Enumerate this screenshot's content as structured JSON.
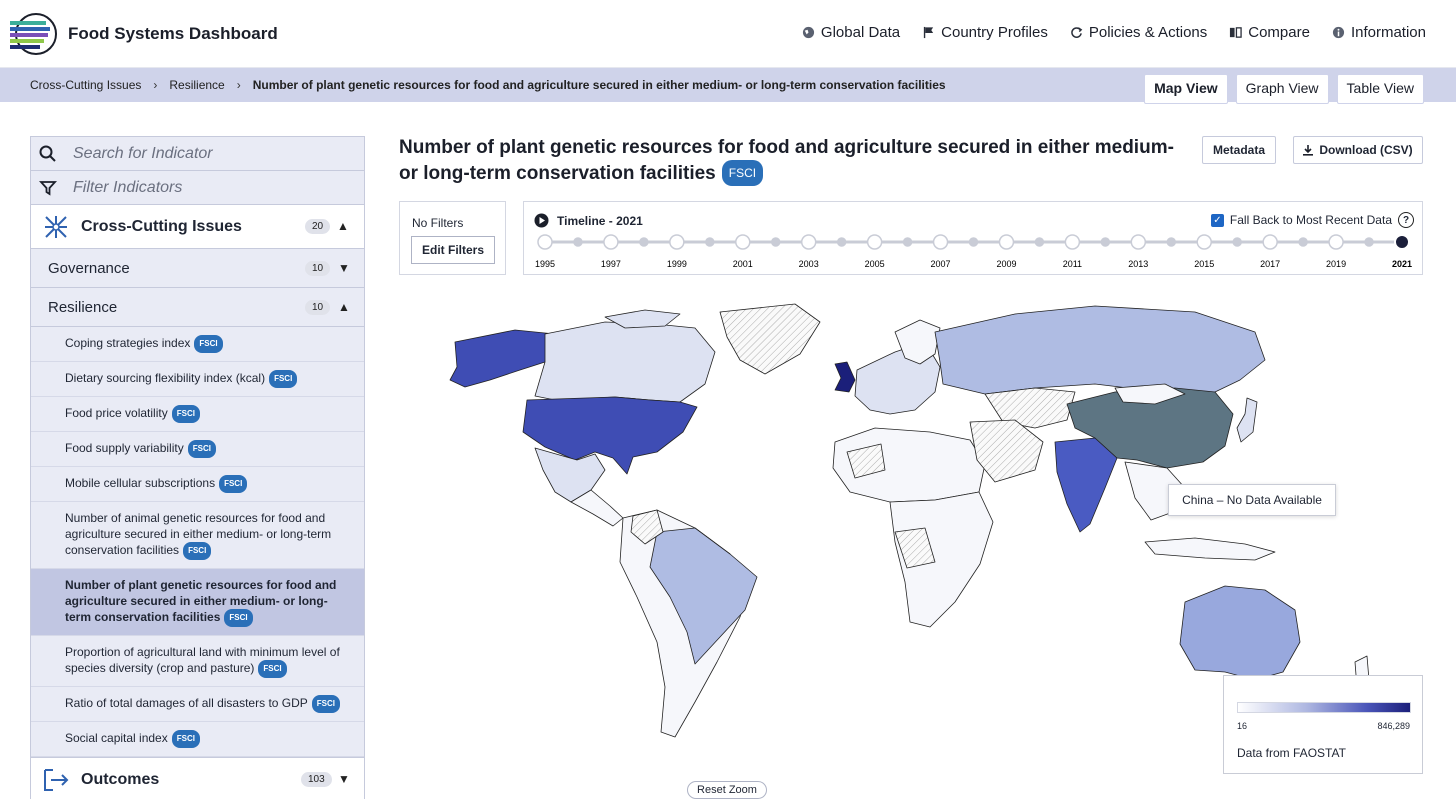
{
  "app": {
    "title": "Food Systems Dashboard"
  },
  "nav": {
    "global": "Global Data",
    "country": "Country Profiles",
    "policies": "Policies & Actions",
    "compare": "Compare",
    "info": "Information"
  },
  "breadcrumb": {
    "level1": "Cross-Cutting Issues",
    "level2": "Resilience",
    "current": "Number of plant genetic resources for food and agriculture secured in either medium- or long-term conservation facilities"
  },
  "views": {
    "map": "Map View",
    "graph": "Graph View",
    "table": "Table View"
  },
  "sidebar": {
    "search_placeholder": "Search for Indicator",
    "filter_placeholder": "Filter Indicators",
    "category": {
      "label": "Cross-Cutting Issues",
      "count": "20"
    },
    "governance": {
      "label": "Governance",
      "count": "10"
    },
    "resilience": {
      "label": "Resilience",
      "count": "10"
    },
    "items": [
      {
        "label": "Coping strategies index",
        "badge": "FSCI"
      },
      {
        "label": "Dietary sourcing flexibility index (kcal)",
        "badge": "FSCI"
      },
      {
        "label": "Food price volatility",
        "badge": "FSCI"
      },
      {
        "label": "Food supply variability",
        "badge": "FSCI"
      },
      {
        "label": "Mobile cellular subscriptions",
        "badge": "FSCI"
      },
      {
        "label": "Number of animal genetic resources for food and agriculture secured in either medium- or long-term conservation facilities",
        "badge": "FSCI"
      },
      {
        "label": "Number of plant genetic resources for food and agriculture secured in either medium- or long-term conservation facilities",
        "badge": "FSCI"
      },
      {
        "label": "Proportion of agricultural land with minimum level of species diversity (crop and pasture)",
        "badge": "FSCI"
      },
      {
        "label": "Ratio of total damages of all disasters to GDP",
        "badge": "FSCI"
      },
      {
        "label": "Social capital index",
        "badge": "FSCI"
      }
    ],
    "outcomes": {
      "label": "Outcomes",
      "count": "103"
    }
  },
  "main": {
    "title": "Number of plant genetic resources for food and agriculture secured in either medium- or long-term conservation facilities",
    "title_badge": "FSCI",
    "metadata_button": "Metadata",
    "download_button": "Download (CSV)",
    "filters_label": "No Filters",
    "edit_filters_button": "Edit Filters",
    "timeline_label": "Timeline - 2021",
    "fallback_label": "Fall Back to Most Recent Data",
    "selected_year": "2021",
    "year_labels": [
      "1995",
      "1997",
      "1999",
      "2001",
      "2003",
      "2005",
      "2007",
      "2009",
      "2011",
      "2013",
      "2015",
      "2017",
      "2019",
      "2021"
    ],
    "tooltip": "China – No Data Available",
    "legend": {
      "min": "16",
      "max": "846,289",
      "source": "Data from FAOSTAT"
    },
    "reset_zoom": "Reset Zoom"
  },
  "colors": {
    "accent": "#2a6fb8",
    "breadcrumb_bg": "#cfd3ea",
    "sidebar_bg": "#e9ebf5",
    "map_dark": "#1b1f7a",
    "map_usa": "#3f4db4",
    "map_light": "#afbce3",
    "map_china": "#5d7583"
  }
}
